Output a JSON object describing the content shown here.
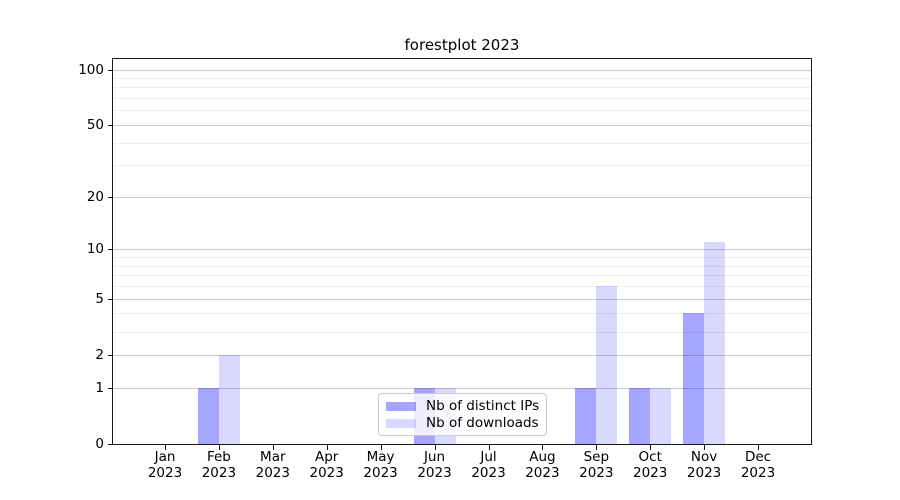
{
  "title": "forestplot 2023",
  "chart_data": {
    "type": "bar",
    "title": "forestplot 2023",
    "xlabel": "",
    "ylabel": "",
    "x_months": [
      "Jan",
      "Feb",
      "Mar",
      "Apr",
      "May",
      "Jun",
      "Jul",
      "Aug",
      "Sep",
      "Oct",
      "Nov",
      "Dec"
    ],
    "x_year": "2023",
    "series": [
      {
        "name": "Nb of distinct IPs",
        "color": "#0000FF59",
        "values": [
          0,
          1,
          0,
          0,
          0,
          1,
          0,
          0,
          1,
          1,
          4,
          0
        ]
      },
      {
        "name": "Nb of downloads",
        "color": "#0000FF26",
        "values": [
          0,
          2,
          0,
          0,
          0,
          1,
          0,
          0,
          6,
          1,
          11,
          0
        ]
      }
    ],
    "yscale": "log1p",
    "ylim": [
      0,
      114
    ],
    "yticks": [
      0,
      1,
      2,
      5,
      10,
      20,
      50,
      100
    ],
    "yticks_minor": [
      3,
      4,
      6,
      7,
      8,
      9,
      30,
      40,
      60,
      70,
      80,
      90
    ],
    "grid": {
      "on": true,
      "orientation": "horizontal",
      "major_color": "#cccccc",
      "minor_color": "#ededed"
    },
    "spine_color": "#1a1a1a",
    "legend": {
      "position": "lower center"
    }
  }
}
